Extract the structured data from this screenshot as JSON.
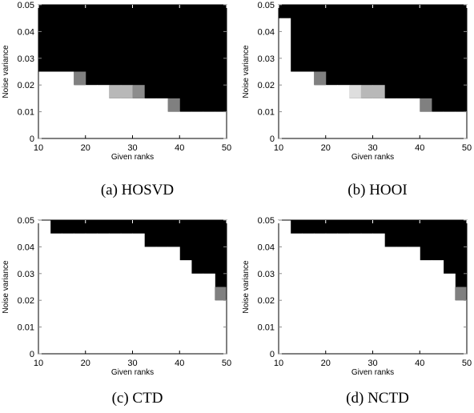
{
  "chart_data": [
    {
      "type": "heatmap",
      "caption": "(a) HOSVD",
      "xlabel": "Given ranks",
      "ylabel": "Noise variance",
      "xlim": [
        10,
        50
      ],
      "ylim": [
        0,
        0.05
      ],
      "xticks": [
        "10",
        "20",
        "30",
        "40",
        "50"
      ],
      "yticks": [
        "0",
        "0.01",
        "0.02",
        "0.03",
        "0.04",
        "0.05"
      ],
      "x_step": 2.5,
      "y_step": 0.005,
      "colormap": {
        "0": "#ffffff",
        "1": "#000000"
      },
      "columns": [
        {
          "x_range": [
            10,
            12.5
          ],
          "white_below": 0.025
        },
        {
          "x_range": [
            12.5,
            15
          ],
          "white_below": 0.025
        },
        {
          "x_range": [
            15,
            17.5
          ],
          "white_below": 0.025
        },
        {
          "x_range": [
            17.5,
            20
          ],
          "white_below": 0.02,
          "gray": [
            {
              "y_range": [
                0.02,
                0.025
              ],
              "level": 0.5
            }
          ]
        },
        {
          "x_range": [
            20,
            22.5
          ],
          "white_below": 0.02
        },
        {
          "x_range": [
            22.5,
            25
          ],
          "white_below": 0.02
        },
        {
          "x_range": [
            25,
            27.5
          ],
          "white_below": 0.015,
          "gray": [
            {
              "y_range": [
                0.015,
                0.02
              ],
              "level": 0.72
            }
          ]
        },
        {
          "x_range": [
            27.5,
            30
          ],
          "white_below": 0.015,
          "gray": [
            {
              "y_range": [
                0.015,
                0.02
              ],
              "level": 0.72
            }
          ]
        },
        {
          "x_range": [
            30,
            32.5
          ],
          "white_below": 0.015,
          "gray": [
            {
              "y_range": [
                0.015,
                0.02
              ],
              "level": 0.55
            }
          ]
        },
        {
          "x_range": [
            32.5,
            35
          ],
          "white_below": 0.015
        },
        {
          "x_range": [
            35,
            37.5
          ],
          "white_below": 0.015
        },
        {
          "x_range": [
            37.5,
            40
          ],
          "white_below": 0.01,
          "gray": [
            {
              "y_range": [
                0.01,
                0.015
              ],
              "level": 0.5
            }
          ]
        },
        {
          "x_range": [
            40,
            42.5
          ],
          "white_below": 0.01
        },
        {
          "x_range": [
            42.5,
            45
          ],
          "white_below": 0.01
        },
        {
          "x_range": [
            45,
            47.5
          ],
          "white_below": 0.01
        },
        {
          "x_range": [
            47.5,
            50
          ],
          "white_below": 0.01
        }
      ]
    },
    {
      "type": "heatmap",
      "caption": "(b) HOOI",
      "xlabel": "Given ranks",
      "ylabel": "Noise variance",
      "xlim": [
        10,
        50
      ],
      "ylim": [
        0,
        0.05
      ],
      "xticks": [
        "10",
        "20",
        "30",
        "40",
        "50"
      ],
      "yticks": [
        "0",
        "0.01",
        "0.02",
        "0.03",
        "0.04",
        "0.05"
      ],
      "x_step": 2.5,
      "y_step": 0.005,
      "colormap": {
        "0": "#ffffff",
        "1": "#000000"
      },
      "columns": [
        {
          "x_range": [
            10,
            12.5
          ],
          "white_below": 0.045
        },
        {
          "x_range": [
            12.5,
            15
          ],
          "white_below": 0.025
        },
        {
          "x_range": [
            15,
            17.5
          ],
          "white_below": 0.025
        },
        {
          "x_range": [
            17.5,
            20
          ],
          "white_below": 0.02,
          "gray": [
            {
              "y_range": [
                0.02,
                0.025
              ],
              "level": 0.5
            }
          ]
        },
        {
          "x_range": [
            20,
            22.5
          ],
          "white_below": 0.02
        },
        {
          "x_range": [
            22.5,
            25
          ],
          "white_below": 0.02
        },
        {
          "x_range": [
            25,
            27.5
          ],
          "white_below": 0.015,
          "gray": [
            {
              "y_range": [
                0.015,
                0.02
              ],
              "level": 0.87
            }
          ]
        },
        {
          "x_range": [
            27.5,
            30
          ],
          "white_below": 0.015,
          "gray": [
            {
              "y_range": [
                0.015,
                0.02
              ],
              "level": 0.72
            }
          ]
        },
        {
          "x_range": [
            30,
            32.5
          ],
          "white_below": 0.015,
          "gray": [
            {
              "y_range": [
                0.015,
                0.02
              ],
              "level": 0.72
            }
          ]
        },
        {
          "x_range": [
            32.5,
            35
          ],
          "white_below": 0.015
        },
        {
          "x_range": [
            35,
            37.5
          ],
          "white_below": 0.015
        },
        {
          "x_range": [
            37.5,
            40
          ],
          "white_below": 0.015
        },
        {
          "x_range": [
            40,
            42.5
          ],
          "white_below": 0.01,
          "gray": [
            {
              "y_range": [
                0.01,
                0.015
              ],
              "level": 0.5
            }
          ]
        },
        {
          "x_range": [
            42.5,
            45
          ],
          "white_below": 0.01
        },
        {
          "x_range": [
            45,
            47.5
          ],
          "white_below": 0.01
        },
        {
          "x_range": [
            47.5,
            50
          ],
          "white_below": 0.01
        }
      ]
    },
    {
      "type": "heatmap",
      "caption": "(c) CTD",
      "xlabel": "Given ranks",
      "ylabel": "Noise variance",
      "xlim": [
        10,
        50
      ],
      "ylim": [
        0,
        0.05
      ],
      "xticks": [
        "10",
        "20",
        "30",
        "40",
        "50"
      ],
      "yticks": [
        "0",
        "0.01",
        "0.02",
        "0.03",
        "0.04",
        "0.05"
      ],
      "x_step": 2.5,
      "y_step": 0.005,
      "colormap": {
        "0": "#ffffff",
        "1": "#000000"
      },
      "columns": [
        {
          "x_range": [
            10,
            12.5
          ],
          "white_below": 0.05
        },
        {
          "x_range": [
            12.5,
            15
          ],
          "white_below": 0.045
        },
        {
          "x_range": [
            15,
            17.5
          ],
          "white_below": 0.045
        },
        {
          "x_range": [
            17.5,
            20
          ],
          "white_below": 0.045
        },
        {
          "x_range": [
            20,
            22.5
          ],
          "white_below": 0.045
        },
        {
          "x_range": [
            22.5,
            25
          ],
          "white_below": 0.045
        },
        {
          "x_range": [
            25,
            27.5
          ],
          "white_below": 0.045
        },
        {
          "x_range": [
            27.5,
            30
          ],
          "white_below": 0.045
        },
        {
          "x_range": [
            30,
            32.5
          ],
          "white_below": 0.045
        },
        {
          "x_range": [
            32.5,
            35
          ],
          "white_below": 0.04
        },
        {
          "x_range": [
            35,
            37.5
          ],
          "white_below": 0.04
        },
        {
          "x_range": [
            37.5,
            40
          ],
          "white_below": 0.04
        },
        {
          "x_range": [
            40,
            42.5
          ],
          "white_below": 0.035
        },
        {
          "x_range": [
            42.5,
            45
          ],
          "white_below": 0.03
        },
        {
          "x_range": [
            45,
            47.5
          ],
          "white_below": 0.03
        },
        {
          "x_range": [
            47.5,
            50
          ],
          "white_below": 0.02,
          "gray": [
            {
              "y_range": [
                0.02,
                0.025
              ],
              "level": 0.5
            }
          ]
        }
      ]
    },
    {
      "type": "heatmap",
      "caption": "(d) NCTD",
      "xlabel": "Given ranks",
      "ylabel": "Noise variance",
      "xlim": [
        10,
        50
      ],
      "ylim": [
        0,
        0.05
      ],
      "xticks": [
        "10",
        "20",
        "30",
        "40",
        "50"
      ],
      "yticks": [
        "0",
        "0.01",
        "0.02",
        "0.03",
        "0.04",
        "0.05"
      ],
      "x_step": 2.5,
      "y_step": 0.005,
      "colormap": {
        "0": "#ffffff",
        "1": "#000000"
      },
      "columns": [
        {
          "x_range": [
            10,
            12.5
          ],
          "white_below": 0.05
        },
        {
          "x_range": [
            12.5,
            15
          ],
          "white_below": 0.045
        },
        {
          "x_range": [
            15,
            17.5
          ],
          "white_below": 0.045
        },
        {
          "x_range": [
            17.5,
            20
          ],
          "white_below": 0.045
        },
        {
          "x_range": [
            20,
            22.5
          ],
          "white_below": 0.045
        },
        {
          "x_range": [
            22.5,
            25
          ],
          "white_below": 0.045
        },
        {
          "x_range": [
            25,
            27.5
          ],
          "white_below": 0.045
        },
        {
          "x_range": [
            27.5,
            30
          ],
          "white_below": 0.045
        },
        {
          "x_range": [
            30,
            32.5
          ],
          "white_below": 0.045
        },
        {
          "x_range": [
            32.5,
            35
          ],
          "white_below": 0.04
        },
        {
          "x_range": [
            35,
            37.5
          ],
          "white_below": 0.04
        },
        {
          "x_range": [
            37.5,
            40
          ],
          "white_below": 0.04
        },
        {
          "x_range": [
            40,
            42.5
          ],
          "white_below": 0.035
        },
        {
          "x_range": [
            42.5,
            45
          ],
          "white_below": 0.035
        },
        {
          "x_range": [
            45,
            47.5
          ],
          "white_below": 0.03
        },
        {
          "x_range": [
            47.5,
            50
          ],
          "white_below": 0.02,
          "gray": [
            {
              "y_range": [
                0.02,
                0.025
              ],
              "level": 0.5
            }
          ]
        }
      ]
    }
  ]
}
